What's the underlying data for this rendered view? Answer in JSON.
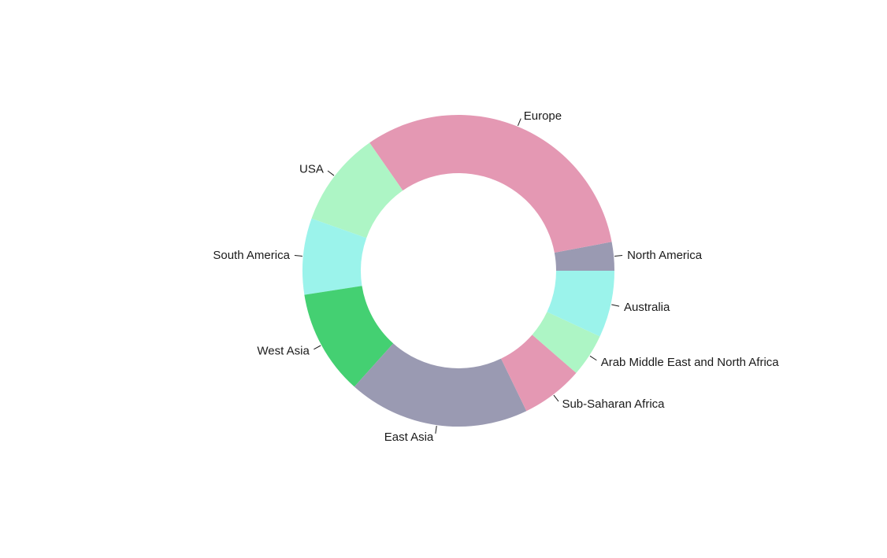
{
  "chart_data": {
    "type": "pie",
    "donut": true,
    "title": "",
    "slices": [
      {
        "label": "North America",
        "value": 3.0,
        "color": "#9A9AB2"
      },
      {
        "label": "Europe",
        "value": 32.0,
        "color": "#E498B3"
      },
      {
        "label": "USA",
        "value": 10.0,
        "color": "#ADF5C5"
      },
      {
        "label": "South America",
        "value": 8.0,
        "color": "#9BF3EB"
      },
      {
        "label": "West Asia",
        "value": 11.0,
        "color": "#44D072"
      },
      {
        "label": "East Asia",
        "value": 19.0,
        "color": "#9A9AB2"
      },
      {
        "label": "Sub-Saharan Africa",
        "value": 6.5,
        "color": "#E498B3"
      },
      {
        "label": "Arab Middle East and North Africa",
        "value": 4.5,
        "color": "#ADF5C5"
      },
      {
        "label": "Australia",
        "value": 7.0,
        "color": "#9BF3EB"
      }
    ]
  }
}
